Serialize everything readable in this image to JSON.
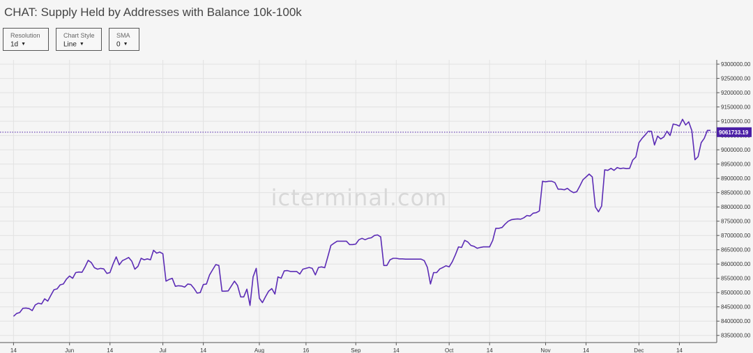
{
  "header": {
    "title": "CHAT: Supply Held by Addresses with Balance 10k-100k"
  },
  "controls": [
    {
      "label": "Resolution",
      "value": "1d"
    },
    {
      "label": "Chart Style",
      "value": "Line"
    },
    {
      "label": "SMA",
      "value": "0"
    }
  ],
  "watermark": "icterminal.com",
  "colors": {
    "line": "#5b2bb5",
    "price_tag": "#4b1fa6",
    "background": "#f5f5f5",
    "grid": "#e2e2e2"
  },
  "chart_data": {
    "type": "line",
    "title": "CHAT: Supply Held by Addresses with Balance 10k-100k",
    "grid": true,
    "y_axis_position": "right",
    "ylim": [
      8325000,
      9310000
    ],
    "y_ticks": [
      8350000,
      8400000,
      8450000,
      8500000,
      8550000,
      8600000,
      8650000,
      8700000,
      8750000,
      8800000,
      8850000,
      8900000,
      8950000,
      9000000,
      9050000,
      9100000,
      9150000,
      9200000,
      9250000,
      9300000
    ],
    "y_tick_labels": [
      "8350000.00",
      "8400000.00",
      "8450000.00",
      "8500000.00",
      "8550000.00",
      "8600000.00",
      "8650000.00",
      "8700000.00",
      "8750000.00",
      "8800000.00",
      "8850000.00",
      "8900000.00",
      "8950000.00",
      "9000000.00",
      "9050000.00",
      "9100000.00",
      "9150000.00",
      "9200000.00",
      "9250000.00",
      "9300000.00"
    ],
    "x_ticks": [
      {
        "label": "14",
        "date": "2025-05-14"
      },
      {
        "label": "Jun",
        "date": "2025-06-01"
      },
      {
        "label": "14",
        "date": "2025-06-14"
      },
      {
        "label": "Jul",
        "date": "2025-07-01"
      },
      {
        "label": "14",
        "date": "2025-07-14"
      },
      {
        "label": "Aug",
        "date": "2025-08-01"
      },
      {
        "label": "16",
        "date": "2025-08-16"
      },
      {
        "label": "Sep",
        "date": "2025-09-01"
      },
      {
        "label": "14",
        "date": "2025-09-14"
      },
      {
        "label": "Oct",
        "date": "2025-10-01"
      },
      {
        "label": "14",
        "date": "2025-10-14"
      },
      {
        "label": "Nov",
        "date": "2025-11-01"
      },
      {
        "label": "14",
        "date": "2025-11-14"
      },
      {
        "label": "Dec",
        "date": "2025-12-01"
      },
      {
        "label": "14",
        "date": "2025-12-14"
      }
    ],
    "xlim": [
      "2025-05-11",
      "2025-12-26"
    ],
    "last_value": 9061733.19,
    "last_value_label": "9061733.19",
    "series": [
      {
        "x": [
          "2025-05-14",
          "2025-05-15",
          "2025-05-16",
          "2025-05-17",
          "2025-05-18",
          "2025-05-19",
          "2025-05-20",
          "2025-05-21",
          "2025-05-22",
          "2025-05-23",
          "2025-05-24",
          "2025-05-25",
          "2025-05-26",
          "2025-05-27",
          "2025-05-28",
          "2025-05-29",
          "2025-05-30",
          "2025-05-31",
          "2025-06-01",
          "2025-06-02",
          "2025-06-03",
          "2025-06-04",
          "2025-06-05",
          "2025-06-06",
          "2025-06-07",
          "2025-06-08",
          "2025-06-09",
          "2025-06-10",
          "2025-06-11",
          "2025-06-12",
          "2025-06-13",
          "2025-06-14",
          "2025-06-15",
          "2025-06-16",
          "2025-06-17",
          "2025-06-18",
          "2025-06-19",
          "2025-06-20",
          "2025-06-21",
          "2025-06-22",
          "2025-06-23",
          "2025-06-24",
          "2025-06-25",
          "2025-06-26",
          "2025-06-27",
          "2025-06-28",
          "2025-06-29",
          "2025-06-30",
          "2025-07-01",
          "2025-07-02",
          "2025-07-03",
          "2025-07-04",
          "2025-07-05",
          "2025-07-06",
          "2025-07-07",
          "2025-07-08",
          "2025-07-09",
          "2025-07-10",
          "2025-07-11",
          "2025-07-12",
          "2025-07-13",
          "2025-07-14",
          "2025-07-15",
          "2025-07-16",
          "2025-07-17",
          "2025-07-18",
          "2025-07-19",
          "2025-07-20",
          "2025-07-21",
          "2025-07-22",
          "2025-07-23",
          "2025-07-24",
          "2025-07-25",
          "2025-07-26",
          "2025-07-27",
          "2025-07-28",
          "2025-07-29",
          "2025-07-30",
          "2025-07-31",
          "2025-08-01",
          "2025-08-02",
          "2025-08-03",
          "2025-08-04",
          "2025-08-05",
          "2025-08-06",
          "2025-08-07",
          "2025-08-08",
          "2025-08-09",
          "2025-08-10",
          "2025-08-11",
          "2025-08-12",
          "2025-08-13",
          "2025-08-14",
          "2025-08-15",
          "2025-08-16",
          "2025-08-17",
          "2025-08-18",
          "2025-08-19",
          "2025-08-20",
          "2025-08-21",
          "2025-08-22",
          "2025-08-23",
          "2025-08-24",
          "2025-08-25",
          "2025-08-26",
          "2025-08-27",
          "2025-08-28",
          "2025-08-29",
          "2025-08-30",
          "2025-08-31",
          "2025-09-01",
          "2025-09-02",
          "2025-09-03",
          "2025-09-04",
          "2025-09-05",
          "2025-09-06",
          "2025-09-07",
          "2025-09-08",
          "2025-09-09",
          "2025-09-10",
          "2025-09-11",
          "2025-09-12",
          "2025-09-13",
          "2025-09-14",
          "2025-09-15",
          "2025-09-16",
          "2025-09-17",
          "2025-09-18",
          "2025-09-19",
          "2025-09-20",
          "2025-09-21",
          "2025-09-22",
          "2025-09-23",
          "2025-09-24",
          "2025-09-25",
          "2025-09-26",
          "2025-09-27",
          "2025-09-28",
          "2025-09-29",
          "2025-09-30",
          "2025-10-01",
          "2025-10-02",
          "2025-10-03",
          "2025-10-04",
          "2025-10-05",
          "2025-10-06",
          "2025-10-07",
          "2025-10-08",
          "2025-10-09",
          "2025-10-10",
          "2025-10-11",
          "2025-10-12",
          "2025-10-13",
          "2025-10-14",
          "2025-10-15",
          "2025-10-16",
          "2025-10-17",
          "2025-10-18",
          "2025-10-19",
          "2025-10-20",
          "2025-10-21",
          "2025-10-22",
          "2025-10-23",
          "2025-10-24",
          "2025-10-25",
          "2025-10-26",
          "2025-10-27",
          "2025-10-28",
          "2025-10-29",
          "2025-10-30",
          "2025-10-31",
          "2025-11-01",
          "2025-11-02",
          "2025-11-03",
          "2025-11-04",
          "2025-11-05",
          "2025-11-06",
          "2025-11-07",
          "2025-11-08",
          "2025-11-09",
          "2025-11-10",
          "2025-11-11",
          "2025-11-12",
          "2025-11-13",
          "2025-11-14",
          "2025-11-15",
          "2025-11-16",
          "2025-11-17",
          "2025-11-18",
          "2025-11-19",
          "2025-11-20",
          "2025-11-21",
          "2025-11-22",
          "2025-11-23",
          "2025-11-24",
          "2025-11-25",
          "2025-11-26",
          "2025-11-27",
          "2025-11-28",
          "2025-11-29",
          "2025-11-30",
          "2025-12-01",
          "2025-12-02",
          "2025-12-03",
          "2025-12-04",
          "2025-12-05",
          "2025-12-06",
          "2025-12-07",
          "2025-12-08",
          "2025-12-09",
          "2025-12-10",
          "2025-12-11",
          "2025-12-12",
          "2025-12-13",
          "2025-12-14",
          "2025-12-15",
          "2025-12-16",
          "2025-12-17",
          "2025-12-18",
          "2025-12-19",
          "2025-12-20",
          "2025-12-21",
          "2025-12-22",
          "2025-12-23",
          "2025-12-24"
        ],
        "values": [
          8417000,
          8427000,
          8430000,
          8445000,
          8446000,
          8444000,
          8437000,
          8457000,
          8463000,
          8460000,
          8478000,
          8470000,
          8490000,
          8510000,
          8513000,
          8527000,
          8530000,
          8547000,
          8558000,
          8550000,
          8570000,
          8572000,
          8571000,
          8590000,
          8613000,
          8605000,
          8587000,
          8582000,
          8585000,
          8583000,
          8567000,
          8570000,
          8600000,
          8625000,
          8597000,
          8612000,
          8617000,
          8623000,
          8610000,
          8582000,
          8592000,
          8620000,
          8615000,
          8618000,
          8615000,
          8648000,
          8638000,
          8642000,
          8636000,
          8540000,
          8546000,
          8550000,
          8522000,
          8524000,
          8523000,
          8519000,
          8530000,
          8528000,
          8515000,
          8498000,
          8500000,
          8528000,
          8530000,
          8562000,
          8580000,
          8598000,
          8595000,
          8505000,
          8505000,
          8506000,
          8523000,
          8540000,
          8525000,
          8485000,
          8485000,
          8512000,
          8455000,
          8555000,
          8585000,
          8480000,
          8465000,
          8486000,
          8505000,
          8514000,
          8495000,
          8555000,
          8550000,
          8576000,
          8577000,
          8574000,
          8574000,
          8574000,
          8565000,
          8582000,
          8585000,
          8588000,
          8585000,
          8562000,
          8588000,
          8590000,
          8587000,
          8625000,
          8665000,
          8673000,
          8680000,
          8680000,
          8680000,
          8680000,
          8668000,
          8668000,
          8670000,
          8685000,
          8690000,
          8685000,
          8690000,
          8692000,
          8700000,
          8702000,
          8695000,
          8595000,
          8595000,
          8615000,
          8620000,
          8620000,
          8618000,
          8618000,
          8617000,
          8617000,
          8617000,
          8617000,
          8617000,
          8617000,
          8612000,
          8588000,
          8530000,
          8570000,
          8570000,
          8583000,
          8588000,
          8594000,
          8590000,
          8608000,
          8632000,
          8660000,
          8658000,
          8683000,
          8677000,
          8665000,
          8662000,
          8655000,
          8658000,
          8660000,
          8660000,
          8660000,
          8683000,
          8725000,
          8725000,
          8728000,
          8740000,
          8750000,
          8755000,
          8757000,
          8758000,
          8757000,
          8762000,
          8770000,
          8768000,
          8778000,
          8780000,
          8786000,
          8890000,
          8888000,
          8890000,
          8890000,
          8885000,
          8862000,
          8862000,
          8860000,
          8865000,
          8856000,
          8850000,
          8853000,
          8873000,
          8895000,
          8905000,
          8915000,
          8905000,
          8800000,
          8783000,
          8803000,
          8930000,
          8928000,
          8935000,
          8928000,
          8938000,
          8934000,
          8936000,
          8934000,
          8935000,
          8964000,
          8975000,
          9025000,
          9040000,
          9052000,
          9065000,
          9065000,
          9017000,
          9048000,
          9038000,
          9045000,
          9065000,
          9050000,
          9090000,
          9088000,
          9083000,
          9107000,
          9087000,
          9098000,
          9067000,
          8965000,
          8976000,
          9025000,
          9040000,
          9068000,
          9068000
        ]
      }
    ]
  }
}
